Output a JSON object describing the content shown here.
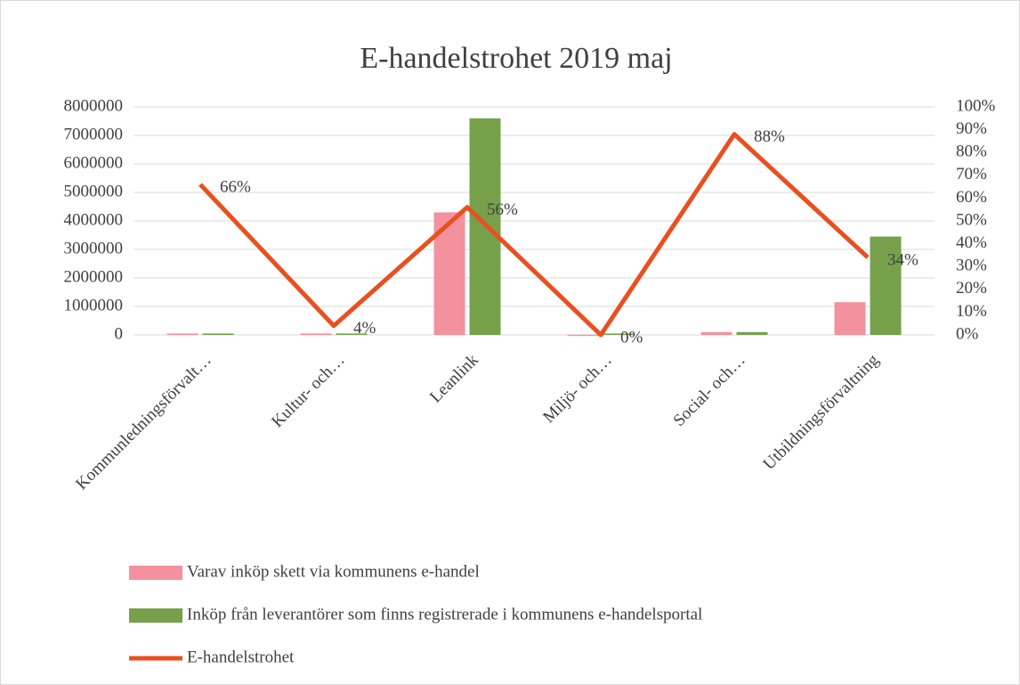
{
  "chart_data": {
    "type": "bar",
    "title": "E-handelstrohet 2019 maj",
    "categories": [
      "Kommunledningsförvalt…",
      "Kultur- och…",
      "Leanlink",
      "Miljö- och…",
      "Social- och…",
      "Utbildningsförvaltning"
    ],
    "series": [
      {
        "name": "Varav inköp skett via kommunens e-handel",
        "type": "bar",
        "color": "#f4919f",
        "values": [
          50000,
          50000,
          4300000,
          10000,
          100000,
          1150000
        ]
      },
      {
        "name": "Inköp från leverantörer som finns registrerade i kommunens e-handelsportal",
        "type": "bar",
        "color": "#77a04b",
        "values": [
          50000,
          50000,
          7600000,
          50000,
          100000,
          3450000
        ]
      },
      {
        "name": "E-handelstrohet",
        "type": "line",
        "axis": "y2",
        "color": "#e8501f",
        "values": [
          66,
          4,
          56,
          0,
          88,
          34
        ],
        "value_labels": [
          "66%",
          "4%",
          "56%",
          "0%",
          "88%",
          "34%"
        ]
      }
    ],
    "ylim": [
      0,
      8000000
    ],
    "yticks": [
      0,
      1000000,
      2000000,
      3000000,
      4000000,
      5000000,
      6000000,
      7000000,
      8000000
    ],
    "y2lim": [
      0,
      100
    ],
    "y2ticks": [
      {
        "value": 0,
        "label": "0%"
      },
      {
        "value": 10,
        "label": "10%"
      },
      {
        "value": 20,
        "label": "20%"
      },
      {
        "value": 30,
        "label": "30%"
      },
      {
        "value": 40,
        "label": "40%"
      },
      {
        "value": 50,
        "label": "50%"
      },
      {
        "value": 60,
        "label": "60%"
      },
      {
        "value": 70,
        "label": "70%"
      },
      {
        "value": 80,
        "label": "80%"
      },
      {
        "value": 90,
        "label": "90%"
      },
      {
        "value": 100,
        "label": "100%"
      }
    ],
    "grid": true,
    "legend": "bottom"
  }
}
